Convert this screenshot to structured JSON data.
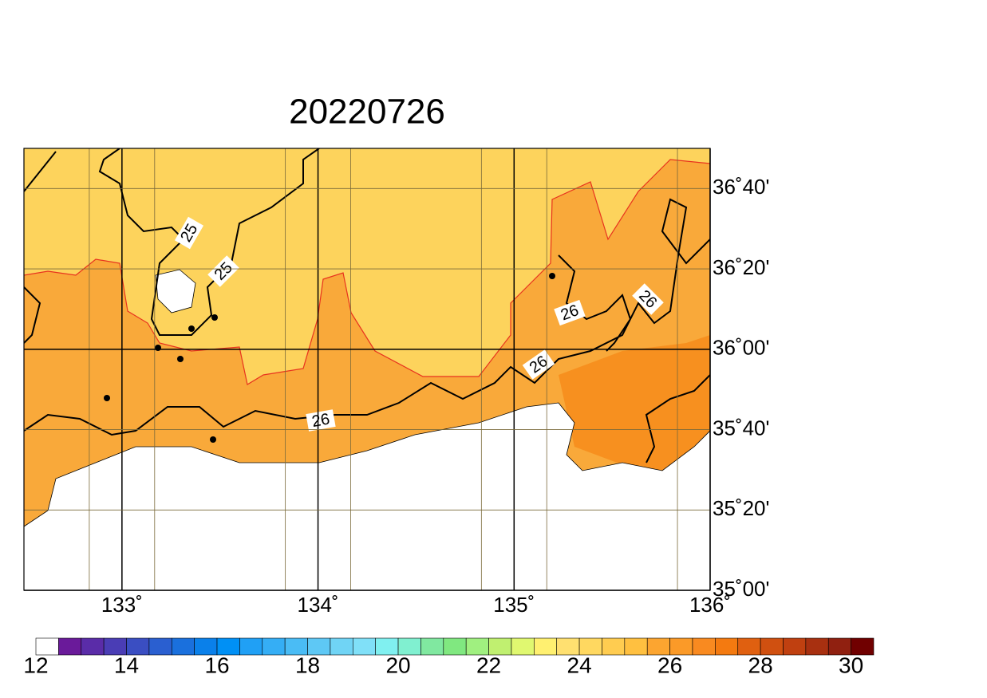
{
  "title": "20220726",
  "map": {
    "xlim": [
      132.5,
      136
    ],
    "ylim": [
      35,
      36.8333
    ],
    "xticks": [
      {
        "value": 133,
        "label": "133˚"
      },
      {
        "value": 134,
        "label": "134˚"
      },
      {
        "value": 135,
        "label": "135˚"
      },
      {
        "value": 136,
        "label": "136˚"
      }
    ],
    "yticks": [
      {
        "value": 36.6667,
        "label": "36˚40'"
      },
      {
        "value": 36.3333,
        "label": "36˚20'"
      },
      {
        "value": 36,
        "label": "36˚00'"
      },
      {
        "value": 35.6667,
        "label": "35˚40'"
      },
      {
        "value": 35.3333,
        "label": "35˚20'"
      },
      {
        "value": 35,
        "label": "35˚00'"
      }
    ]
  },
  "contour_labels": [
    "25",
    "25",
    "26",
    "26",
    "26",
    "26"
  ],
  "colorbar": {
    "lim": [
      12,
      30.5
    ],
    "ticks": [
      12,
      14,
      16,
      18,
      20,
      22,
      24,
      26,
      28,
      30
    ],
    "colors": [
      "#ffffff",
      "#6a1a9a",
      "#5a2ca8",
      "#4a3db5",
      "#3a4ec2",
      "#2a5fd0",
      "#1a70dd",
      "#0a80ea",
      "#0090f5",
      "#20a0f5",
      "#35aef5",
      "#4abcf5",
      "#5ec8f5",
      "#70d4f5",
      "#80e0f8",
      "#80f0f0",
      "#80f0d0",
      "#80e8a0",
      "#80e880",
      "#a0f080",
      "#c0f070",
      "#e0f870",
      "#fff070",
      "#ffe070",
      "#ffd860",
      "#ffcc50",
      "#ffc040",
      "#fca530",
      "#fb9a28",
      "#f98a20",
      "#f47a10",
      "#e06010",
      "#d05010",
      "#c04010",
      "#a83010",
      "#902010",
      "#700000"
    ]
  }
}
